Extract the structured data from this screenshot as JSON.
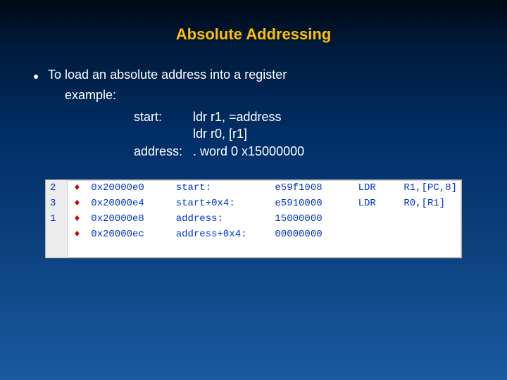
{
  "title": "Absolute Addressing",
  "bullet": "To load an absolute address into a register",
  "example_label": "example:",
  "code": {
    "rows": [
      {
        "label": "start:",
        "instr": "ldr r1, =address"
      },
      {
        "label": "",
        "instr": "ldr r0, [r1]"
      },
      {
        "label": "address:",
        "instr": ". word 0 x15000000"
      }
    ]
  },
  "disasm": {
    "text_color": "#0033cc",
    "bp_color": "#cc0000",
    "gutter_bg": "#ececec",
    "bg": "#ffffff",
    "font_family": "Courier New",
    "font_size_pt": 11,
    "rows": [
      {
        "idx": "2",
        "bp": "♦",
        "addr": "0x20000e0",
        "label": "start:",
        "hex": "e59f1008",
        "mnem": "LDR",
        "ops": "R1,[PC,8]"
      },
      {
        "idx": "3",
        "bp": "♦",
        "addr": "0x20000e4",
        "label": "start+0x4:",
        "hex": "e5910000",
        "mnem": "LDR",
        "ops": "R0,[R1]"
      },
      {
        "idx": "1",
        "bp": "♦",
        "addr": "0x20000e8",
        "label": "address:",
        "hex": "15000000",
        "mnem": "",
        "ops": ""
      },
      {
        "idx": "",
        "bp": "♦",
        "addr": "0x20000ec",
        "label": "address+0x4:",
        "hex": "00000000",
        "mnem": "",
        "ops": ""
      }
    ]
  },
  "colors": {
    "title": "#ffc000",
    "body_text": "#ffffff",
    "bg_top": "#000814",
    "bg_bottom": "#1a5aa0"
  }
}
